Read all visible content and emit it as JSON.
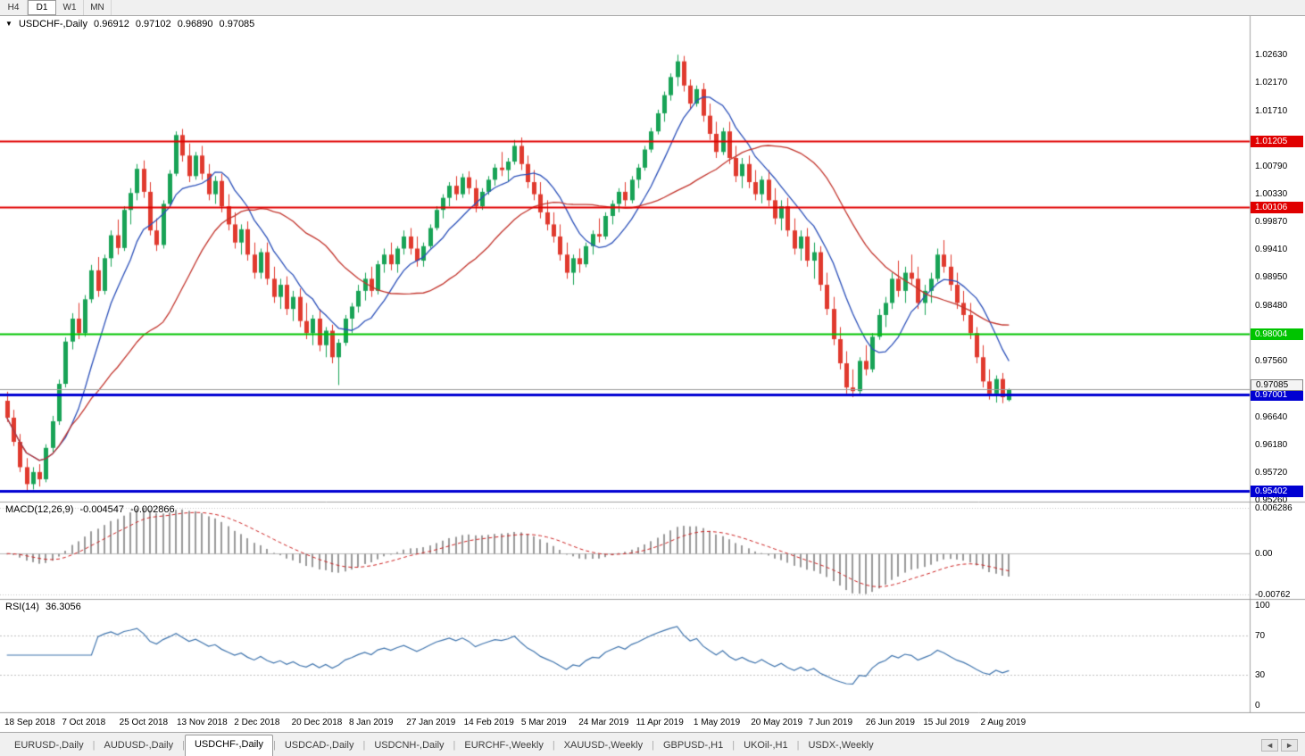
{
  "toolbar": {
    "timeframes": [
      "H4",
      "D1",
      "W1",
      "MN"
    ],
    "active": "D1"
  },
  "icons": {
    "collapse_caret": "▼",
    "scroll_left": "◄",
    "scroll_right": "►"
  },
  "main_title": {
    "symbol": "USDCHF-,Daily",
    "open": "0.96912",
    "high": "0.97102",
    "low": "0.96890",
    "close": "0.97085"
  },
  "colors": {
    "up": "#18a356",
    "down": "#e03a2e",
    "ma_fast": "#2b50b9",
    "ma_slow": "#c2342c",
    "hline_red": "#e00000",
    "hline_green": "#00c400",
    "hline_blue": "#0000d2",
    "macd_hist": "#999999",
    "macd_signal": "#cc2222",
    "rsi": "#3f74ad",
    "grid_dotted": "#c8c8c8",
    "current_line": "#9a9a9a"
  },
  "chart_data": {
    "type": "candlestick",
    "symbol": "USDCHF",
    "timeframe": "Daily",
    "title": "USDCHF-,Daily 0.96912 0.97102 0.96890 0.97085",
    "x_labels": [
      "18 Sep 2018",
      "7 Oct 2018",
      "25 Oct 2018",
      "13 Nov 2018",
      "2 Dec 2018",
      "20 Dec 2018",
      "8 Jan 2019",
      "27 Jan 2019",
      "14 Feb 2019",
      "5 Mar 2019",
      "24 Mar 2019",
      "11 Apr 2019",
      "1 May 2019",
      "20 May 2019",
      "7 Jun 2019",
      "26 Jun 2019",
      "15 Jul 2019",
      "2 Aug 2019"
    ],
    "y_axis": {
      "ticks": [
        "1.02630",
        "1.02170",
        "1.01710",
        "1.00790",
        "1.00330",
        "0.99870",
        "0.99410",
        "0.98950",
        "0.98480",
        "0.97560",
        "0.96640",
        "0.96180",
        "0.95720",
        "0.95260"
      ],
      "max": 1.0327,
      "min": 0.9523
    },
    "hlines": [
      {
        "value": 1.01205,
        "label": "1.01205",
        "color": "#e00000",
        "width": 2
      },
      {
        "value": 1.00106,
        "label": "1.00106",
        "color": "#e00000",
        "width": 2
      },
      {
        "value": 0.98004,
        "label": "0.98004",
        "color": "#00c400",
        "width": 2
      },
      {
        "value": 0.97001,
        "label": "0.97001",
        "color": "#0000d2",
        "width": 3
      },
      {
        "value": 0.95402,
        "label": "0.95402",
        "color": "#0000d2",
        "width": 3
      }
    ],
    "current_price": {
      "value": 0.97085,
      "label": "0.97085"
    },
    "moving_averages": [
      {
        "period": 9,
        "color": "#2b50b9"
      },
      {
        "period": 25,
        "color": "#c2342c"
      }
    ],
    "indicators": [
      {
        "name": "MACD",
        "title": "MACD(12,26,9)",
        "values": [
          "-0.004547",
          "-0.002866"
        ],
        "axis": [
          "0.006286",
          "0.00",
          "-0.00762"
        ],
        "params": [
          12,
          26,
          9
        ]
      },
      {
        "name": "RSI",
        "title": "RSI(14)",
        "value": "36.3056",
        "axis": [
          "100",
          "70",
          "30",
          "0"
        ],
        "levels": [
          70,
          30
        ],
        "period": 14,
        "range": [
          0,
          100
        ]
      }
    ],
    "ohlc": [
      [
        0.969,
        0.9705,
        0.9655,
        0.9662
      ],
      [
        0.9662,
        0.9675,
        0.9615,
        0.9622
      ],
      [
        0.9622,
        0.9635,
        0.9572,
        0.958
      ],
      [
        0.958,
        0.9595,
        0.954,
        0.9552
      ],
      [
        0.9552,
        0.958,
        0.9543,
        0.9572
      ],
      [
        0.9572,
        0.9585,
        0.9548,
        0.956
      ],
      [
        0.956,
        0.9618,
        0.9555,
        0.9612
      ],
      [
        0.9612,
        0.9665,
        0.9605,
        0.9656
      ],
      [
        0.9656,
        0.9725,
        0.965,
        0.9718
      ],
      [
        0.9718,
        0.9795,
        0.9712,
        0.9788
      ],
      [
        0.9788,
        0.9835,
        0.9775,
        0.9826
      ],
      [
        0.9826,
        0.9852,
        0.9792,
        0.9802
      ],
      [
        0.9802,
        0.9865,
        0.9796,
        0.9858
      ],
      [
        0.9858,
        0.9915,
        0.9852,
        0.9906
      ],
      [
        0.9906,
        0.9928,
        0.9862,
        0.9872
      ],
      [
        0.9872,
        0.9932,
        0.9866,
        0.9926
      ],
      [
        0.9926,
        0.9972,
        0.9912,
        0.9964
      ],
      [
        0.9964,
        0.999,
        0.9932,
        0.9943
      ],
      [
        0.9943,
        1.0012,
        0.9938,
        1.0006
      ],
      [
        1.0006,
        1.0042,
        0.9982,
        1.0034
      ],
      [
        1.0034,
        1.0082,
        1.0022,
        1.0074
      ],
      [
        1.0074,
        1.0088,
        1.0026,
        1.0036
      ],
      [
        1.0036,
        1.0052,
        0.9964,
        0.9972
      ],
      [
        0.9972,
        0.9992,
        0.9938,
        0.9948
      ],
      [
        0.9948,
        1.0022,
        0.9942,
        1.0016
      ],
      [
        1.0016,
        1.0072,
        1.001,
        1.0066
      ],
      [
        1.0066,
        1.0136,
        1.0062,
        1.013
      ],
      [
        1.013,
        1.014,
        1.0086,
        1.0096
      ],
      [
        1.0096,
        1.0116,
        1.0052,
        1.0062
      ],
      [
        1.0062,
        1.0102,
        1.0056,
        1.0096
      ],
      [
        1.0096,
        1.0112,
        1.0056,
        1.0066
      ],
      [
        1.0066,
        1.0082,
        1.0022,
        1.0032
      ],
      [
        1.0032,
        1.0062,
        1.0016,
        1.0054
      ],
      [
        1.0054,
        1.0066,
        1.0002,
        1.0012
      ],
      [
        1.0012,
        1.0032,
        0.9972,
        0.9982
      ],
      [
        0.9982,
        1.0002,
        0.9942,
        0.9952
      ],
      [
        0.9952,
        0.9982,
        0.9932,
        0.9974
      ],
      [
        0.9974,
        0.9987,
        0.9922,
        0.9932
      ],
      [
        0.9932,
        0.9952,
        0.9892,
        0.9902
      ],
      [
        0.9902,
        0.9942,
        0.9892,
        0.9936
      ],
      [
        0.9936,
        0.9952,
        0.9882,
        0.9892
      ],
      [
        0.9892,
        0.9912,
        0.9852,
        0.9862
      ],
      [
        0.9862,
        0.9892,
        0.9842,
        0.9882
      ],
      [
        0.9882,
        0.9896,
        0.9832,
        0.9842
      ],
      [
        0.9842,
        0.9872,
        0.9822,
        0.9862
      ],
      [
        0.9862,
        0.9876,
        0.9812,
        0.9822
      ],
      [
        0.9822,
        0.9852,
        0.9792,
        0.9802
      ],
      [
        0.9802,
        0.9832,
        0.9782,
        0.9826
      ],
      [
        0.9826,
        0.9842,
        0.9772,
        0.9782
      ],
      [
        0.9782,
        0.9812,
        0.9762,
        0.9806
      ],
      [
        0.9806,
        0.9816,
        0.9752,
        0.9762
      ],
      [
        0.9762,
        0.9792,
        0.9716,
        0.9786
      ],
      [
        0.9786,
        0.9832,
        0.9781,
        0.9826
      ],
      [
        0.9826,
        0.9852,
        0.9802,
        0.9846
      ],
      [
        0.9846,
        0.9882,
        0.9836,
        0.9872
      ],
      [
        0.9872,
        0.9902,
        0.9856,
        0.9892
      ],
      [
        0.9892,
        0.9912,
        0.9862,
        0.9872
      ],
      [
        0.9872,
        0.9922,
        0.9866,
        0.9916
      ],
      [
        0.9916,
        0.9942,
        0.9902,
        0.9932
      ],
      [
        0.9932,
        0.9952,
        0.9906,
        0.9916
      ],
      [
        0.9916,
        0.9946,
        0.9902,
        0.9942
      ],
      [
        0.9942,
        0.9972,
        0.9932,
        0.9962
      ],
      [
        0.9962,
        0.9976,
        0.9932,
        0.9942
      ],
      [
        0.9942,
        0.9962,
        0.9912,
        0.9922
      ],
      [
        0.9922,
        0.9952,
        0.9912,
        0.9946
      ],
      [
        0.9946,
        0.9982,
        0.9942,
        0.9976
      ],
      [
        0.9976,
        1.0012,
        0.9972,
        1.0006
      ],
      [
        1.0006,
        1.0032,
        0.9992,
        1.0026
      ],
      [
        1.0026,
        1.0052,
        1.0012,
        1.0046
      ],
      [
        1.0046,
        1.0062,
        1.0022,
        1.0032
      ],
      [
        1.0032,
        1.0066,
        1.0026,
        1.006
      ],
      [
        1.006,
        1.007,
        1.0032,
        1.0042
      ],
      [
        1.0042,
        1.0056,
        1.0002,
        1.0012
      ],
      [
        1.0012,
        1.0042,
        1.0006,
        1.0036
      ],
      [
        1.0036,
        1.0062,
        1.0031,
        1.0056
      ],
      [
        1.0056,
        1.0082,
        1.0046,
        1.0076
      ],
      [
        1.0076,
        1.0102,
        1.0062,
        1.0072
      ],
      [
        1.0072,
        1.0092,
        1.0052,
        1.0086
      ],
      [
        1.0086,
        1.0122,
        1.0081,
        1.0112
      ],
      [
        1.0112,
        1.0126,
        1.0072,
        1.0082
      ],
      [
        1.0082,
        1.0096,
        1.0042,
        1.0052
      ],
      [
        1.0052,
        1.0072,
        1.0022,
        1.0032
      ],
      [
        1.0032,
        1.0052,
        0.9992,
        1.0002
      ],
      [
        1.0002,
        1.0022,
        0.9972,
        0.9982
      ],
      [
        0.9982,
        1.0002,
        0.9952,
        0.9962
      ],
      [
        0.9962,
        0.9982,
        0.9922,
        0.9932
      ],
      [
        0.9932,
        0.9952,
        0.9892,
        0.9902
      ],
      [
        0.9902,
        0.9932,
        0.9882,
        0.9926
      ],
      [
        0.9926,
        0.9942,
        0.9902,
        0.9916
      ],
      [
        0.9916,
        0.9952,
        0.9911,
        0.9946
      ],
      [
        0.9946,
        0.9972,
        0.9932,
        0.9966
      ],
      [
        0.9966,
        0.9992,
        0.9952,
        0.9962
      ],
      [
        0.9962,
        1.0002,
        0.9957,
        0.9996
      ],
      [
        0.9996,
        1.0022,
        0.9982,
        1.0016
      ],
      [
        1.0016,
        1.0042,
        1.0002,
        1.0036
      ],
      [
        1.0036,
        1.0052,
        1.0012,
        1.0022
      ],
      [
        1.0022,
        1.0062,
        1.0017,
        1.0056
      ],
      [
        1.0056,
        1.0082,
        1.0042,
        1.0076
      ],
      [
        1.0076,
        1.0112,
        1.0071,
        1.0106
      ],
      [
        1.0106,
        1.0142,
        1.0101,
        1.0136
      ],
      [
        1.0136,
        1.0172,
        1.0131,
        1.0166
      ],
      [
        1.0166,
        1.0202,
        1.0152,
        1.0196
      ],
      [
        1.0196,
        1.0232,
        1.0187,
        1.0226
      ],
      [
        1.0226,
        1.0263,
        1.0211,
        1.0252
      ],
      [
        1.0252,
        1.0261,
        1.0202,
        1.0212
      ],
      [
        1.0212,
        1.0222,
        1.0172,
        1.0182
      ],
      [
        1.0182,
        1.0212,
        1.0177,
        1.0206
      ],
      [
        1.0206,
        1.0216,
        1.0152,
        1.0162
      ],
      [
        1.0162,
        1.0182,
        1.0122,
        1.0132
      ],
      [
        1.0132,
        1.0152,
        1.0092,
        1.0102
      ],
      [
        1.0102,
        1.0142,
        1.0097,
        1.0136
      ],
      [
        1.0136,
        1.0152,
        1.0082,
        1.0092
      ],
      [
        1.0092,
        1.0112,
        1.0052,
        1.0062
      ],
      [
        1.0062,
        1.0092,
        1.0042,
        1.0082
      ],
      [
        1.0082,
        1.0096,
        1.0042,
        1.0052
      ],
      [
        1.0052,
        1.0072,
        1.0022,
        1.0032
      ],
      [
        1.0032,
        1.0062,
        1.0017,
        1.0056
      ],
      [
        1.0056,
        1.0072,
        1.0012,
        1.0022
      ],
      [
        1.0022,
        1.0042,
        0.9982,
        0.9992
      ],
      [
        0.9992,
        1.0022,
        0.9972,
        1.0012
      ],
      [
        1.0012,
        1.0026,
        0.9962,
        0.9972
      ],
      [
        0.9972,
        0.9992,
        0.9932,
        0.9942
      ],
      [
        0.9942,
        0.9972,
        0.9922,
        0.9962
      ],
      [
        0.9962,
        0.9976,
        0.9912,
        0.9922
      ],
      [
        0.9922,
        0.9952,
        0.9892,
        0.9936
      ],
      [
        0.9936,
        0.9946,
        0.9872,
        0.9882
      ],
      [
        0.9882,
        0.9902,
        0.9832,
        0.9842
      ],
      [
        0.9842,
        0.9862,
        0.9782,
        0.9792
      ],
      [
        0.9792,
        0.9812,
        0.9742,
        0.9752
      ],
      [
        0.9752,
        0.9772,
        0.9702,
        0.9712
      ],
      [
        0.9712,
        0.9742,
        0.9696,
        0.9706
      ],
      [
        0.9706,
        0.9762,
        0.9699,
        0.9756
      ],
      [
        0.9756,
        0.9782,
        0.9732,
        0.9742
      ],
      [
        0.9742,
        0.9802,
        0.9737,
        0.9796
      ],
      [
        0.9796,
        0.9842,
        0.9791,
        0.9832
      ],
      [
        0.9832,
        0.9862,
        0.9812,
        0.9852
      ],
      [
        0.9852,
        0.9902,
        0.9842,
        0.9892
      ],
      [
        0.9892,
        0.9922,
        0.9862,
        0.9872
      ],
      [
        0.9872,
        0.9912,
        0.9852,
        0.9902
      ],
      [
        0.9902,
        0.9932,
        0.9882,
        0.9892
      ],
      [
        0.9892,
        0.9912,
        0.9842,
        0.9852
      ],
      [
        0.9852,
        0.9882,
        0.9832,
        0.9872
      ],
      [
        0.9872,
        0.9902,
        0.9852,
        0.9892
      ],
      [
        0.9892,
        0.9942,
        0.9887,
        0.9932
      ],
      [
        0.9932,
        0.9956,
        0.9902,
        0.9912
      ],
      [
        0.9912,
        0.9932,
        0.9872,
        0.9882
      ],
      [
        0.9882,
        0.9902,
        0.9842,
        0.9852
      ],
      [
        0.9852,
        0.9872,
        0.9822,
        0.9832
      ],
      [
        0.9832,
        0.9852,
        0.9792,
        0.9802
      ],
      [
        0.9802,
        0.9812,
        0.9752,
        0.9762
      ],
      [
        0.9762,
        0.9782,
        0.9712,
        0.9722
      ],
      [
        0.9722,
        0.9742,
        0.9692,
        0.9702
      ],
      [
        0.9702,
        0.9732,
        0.9687,
        0.9726
      ],
      [
        0.9726,
        0.9736,
        0.9686,
        0.9696
      ],
      [
        0.96912,
        0.97102,
        0.9689,
        0.97085
      ]
    ]
  },
  "tabs": {
    "items": [
      "EURUSD-,Daily",
      "AUDUSD-,Daily",
      "USDCHF-,Daily",
      "USDCAD-,Daily",
      "USDCNH-,Daily",
      "EURCHF-,Weekly",
      "XAUUSD-,Weekly",
      "GBPUSD-,H1",
      "UKOil-,H1",
      "USDX-,Weekly"
    ],
    "active": "USDCHF-,Daily",
    "separator": "|"
  }
}
